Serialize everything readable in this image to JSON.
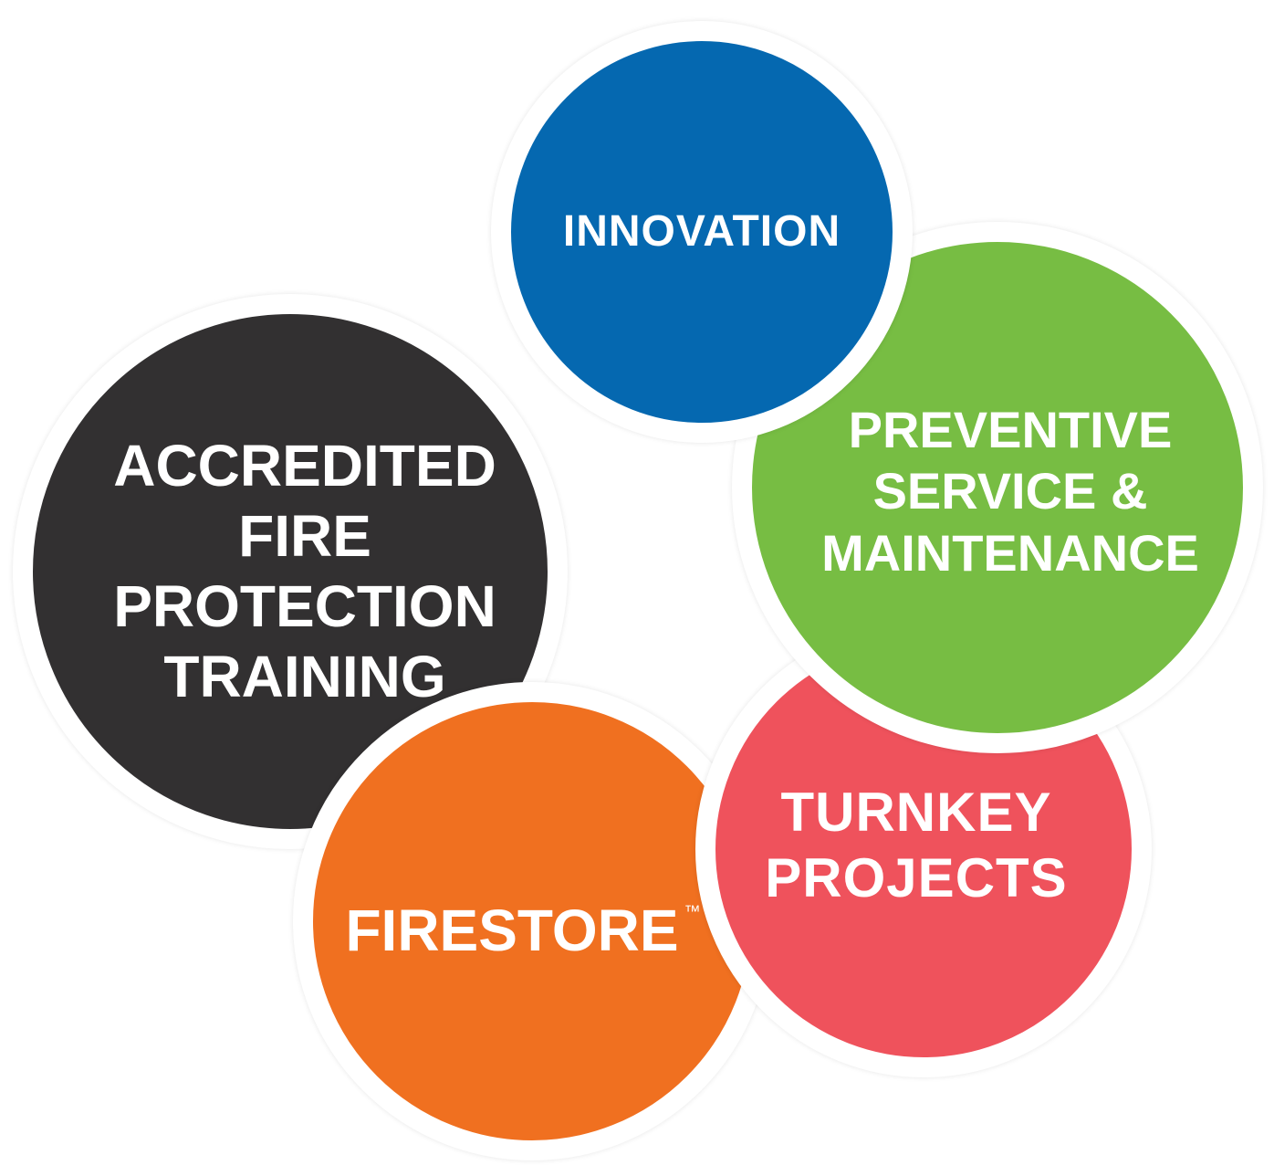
{
  "diagram": {
    "nodes": [
      {
        "id": "innovation",
        "lines": [
          "INNOVATION"
        ],
        "color": "#0568b0"
      },
      {
        "id": "preventive",
        "lines": [
          "PREVENTIVE",
          "SERVICE &",
          "MAINTENANCE"
        ],
        "color": "#77bd43"
      },
      {
        "id": "turnkey",
        "lines": [
          "TURNKEY",
          "PROJECTS"
        ],
        "color": "#ef525c"
      },
      {
        "id": "firestore",
        "lines": [
          "FIRESTORE"
        ],
        "trademark": "™",
        "color": "#f07020"
      },
      {
        "id": "accredited",
        "lines": [
          "ACCREDITED",
          "FIRE",
          "PROTECTION",
          "TRAINING"
        ],
        "color": "#323031"
      }
    ]
  }
}
